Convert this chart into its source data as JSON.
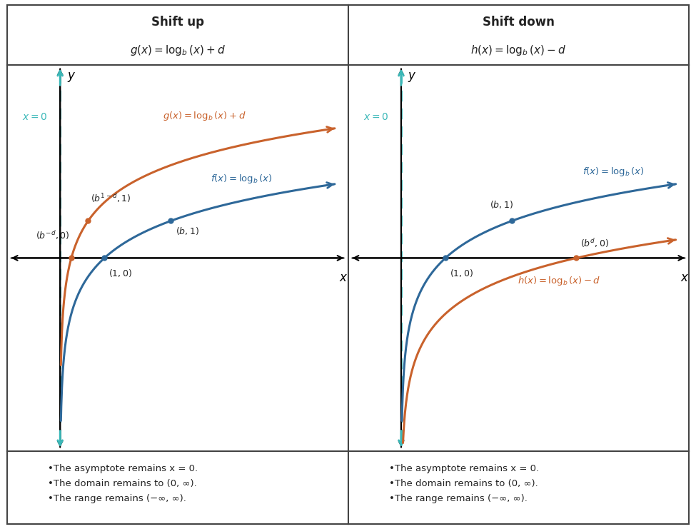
{
  "title_left_bold": "Shift up",
  "title_left_italic": "g(x) = log_b(x) + d",
  "title_right_bold": "Shift down",
  "title_right_italic": "h(x) = log_b(x) - d",
  "blue_color": "#2e6899",
  "orange_color": "#c9622c",
  "teal_color": "#3ab8b8",
  "text_color": "#222222",
  "background": "#ffffff",
  "footer_left": [
    "•The asymptote remains x = 0.",
    "•The domain remains to (0, ∞).",
    "•The range remains (−∞, ∞)."
  ],
  "footer_right": [
    "•The asymptote remains x = 0.",
    "•The domain remains to (0, ∞).",
    "•The range remains (−∞, ∞)."
  ],
  "b": 2.5,
  "d": 1.5,
  "xlim": [
    -1.2,
    6.5
  ],
  "ylim": [
    -5.2,
    5.2
  ]
}
